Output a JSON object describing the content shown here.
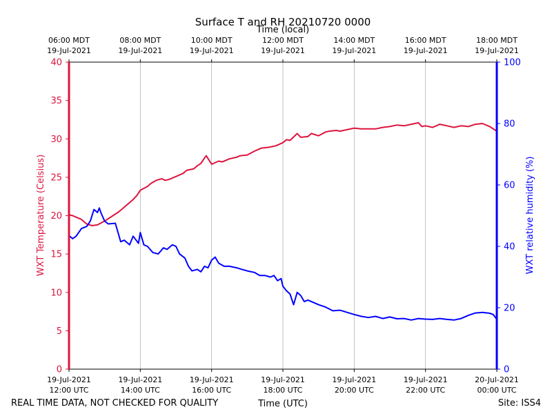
{
  "chart_data": {
    "type": "line",
    "title": "Surface T and RH 20210720 0000",
    "top_axis_label": "Time (local)",
    "top_ticks": [
      {
        "hour": 12,
        "line1": "06:00 MDT",
        "line2": "19-Jul-2021"
      },
      {
        "hour": 14,
        "line1": "08:00 MDT",
        "line2": "19-Jul-2021"
      },
      {
        "hour": 16,
        "line1": "10:00 MDT",
        "line2": "19-Jul-2021"
      },
      {
        "hour": 18,
        "line1": "12:00 MDT",
        "line2": "19-Jul-2021"
      },
      {
        "hour": 20,
        "line1": "14:00 MDT",
        "line2": "19-Jul-2021"
      },
      {
        "hour": 22,
        "line1": "16:00 MDT",
        "line2": "19-Jul-2021"
      },
      {
        "hour": 24,
        "line1": "18:00 MDT",
        "line2": "19-Jul-2021"
      }
    ],
    "xlabel": "Time (UTC)",
    "x_ticks": [
      {
        "hour": 12,
        "line1": "19-Jul-2021",
        "line2": "12:00 UTC"
      },
      {
        "hour": 14,
        "line1": "19-Jul-2021",
        "line2": "14:00 UTC"
      },
      {
        "hour": 16,
        "line1": "19-Jul-2021",
        "line2": "16:00 UTC"
      },
      {
        "hour": 18,
        "line1": "19-Jul-2021",
        "line2": "18:00 UTC"
      },
      {
        "hour": 20,
        "line1": "19-Jul-2021",
        "line2": "20:00 UTC"
      },
      {
        "hour": 22,
        "line1": "19-Jul-2021",
        "line2": "22:00 UTC"
      },
      {
        "hour": 24,
        "line1": "20-Jul-2021",
        "line2": "00:00 UTC"
      }
    ],
    "xlim": [
      12,
      24
    ],
    "grid_x": true,
    "ylabel_left": "WXT Temperature (Celsius)",
    "ylim_left": [
      0,
      40
    ],
    "yticks_left": [
      0,
      5,
      10,
      15,
      20,
      25,
      30,
      35,
      40
    ],
    "ylabel_right": "WXT relative humidity (%)",
    "ylim_right": [
      0,
      100
    ],
    "yticks_right": [
      0,
      20,
      40,
      60,
      80,
      100
    ],
    "series": [
      {
        "name": "Temperature",
        "axis": "left",
        "color": "#dc143c",
        "x": [
          12.0,
          12.1,
          12.2,
          12.35,
          12.5,
          12.65,
          12.8,
          13.0,
          13.2,
          13.4,
          13.6,
          13.8,
          13.9,
          14.0,
          14.2,
          14.3,
          14.45,
          14.6,
          14.7,
          14.8,
          15.0,
          15.2,
          15.3,
          15.5,
          15.6,
          15.7,
          15.8,
          15.85,
          16.0,
          16.2,
          16.3,
          16.5,
          16.7,
          16.8,
          17.0,
          17.2,
          17.3,
          17.4,
          17.6,
          17.8,
          18.0,
          18.1,
          18.2,
          18.4,
          18.5,
          18.7,
          18.8,
          19.0,
          19.2,
          19.3,
          19.5,
          19.6,
          19.8,
          20.0,
          20.2,
          20.4,
          20.6,
          20.8,
          21.0,
          21.2,
          21.4,
          21.6,
          21.8,
          21.9,
          22.0,
          22.2,
          22.4,
          22.6,
          22.8,
          23.0,
          23.2,
          23.4,
          23.6,
          23.8,
          24.0
        ],
        "y": [
          20.1,
          20.0,
          19.8,
          19.5,
          18.9,
          18.7,
          18.8,
          19.3,
          19.9,
          20.5,
          21.3,
          22.1,
          22.6,
          23.3,
          23.8,
          24.2,
          24.6,
          24.8,
          24.6,
          24.7,
          25.1,
          25.5,
          25.9,
          26.1,
          26.5,
          26.8,
          27.5,
          27.8,
          26.7,
          27.1,
          27.0,
          27.4,
          27.6,
          27.8,
          27.9,
          28.4,
          28.6,
          28.8,
          28.9,
          29.1,
          29.5,
          29.9,
          29.8,
          30.7,
          30.2,
          30.3,
          30.7,
          30.4,
          30.9,
          31.0,
          31.1,
          31.0,
          31.2,
          31.4,
          31.3,
          31.3,
          31.3,
          31.5,
          31.6,
          31.8,
          31.7,
          31.9,
          32.1,
          31.6,
          31.7,
          31.5,
          31.9,
          31.7,
          31.5,
          31.7,
          31.6,
          31.9,
          32.0,
          31.6,
          31.0
        ]
      },
      {
        "name": "Relative humidity",
        "axis": "right",
        "color": "#0000ff",
        "x": [
          12.0,
          12.1,
          12.2,
          12.35,
          12.5,
          12.6,
          12.7,
          12.8,
          12.85,
          12.9,
          13.0,
          13.1,
          13.3,
          13.45,
          13.55,
          13.7,
          13.8,
          13.95,
          14.0,
          14.1,
          14.2,
          14.35,
          14.5,
          14.65,
          14.75,
          14.9,
          15.0,
          15.1,
          15.25,
          15.35,
          15.45,
          15.6,
          15.7,
          15.8,
          15.9,
          16.0,
          16.1,
          16.2,
          16.35,
          16.5,
          16.7,
          16.85,
          17.0,
          17.2,
          17.35,
          17.5,
          17.65,
          17.75,
          17.85,
          17.95,
          18.0,
          18.1,
          18.2,
          18.3,
          18.4,
          18.5,
          18.6,
          18.7,
          18.8,
          19.0,
          19.2,
          19.4,
          19.6,
          19.8,
          20.0,
          20.2,
          20.4,
          20.6,
          20.8,
          21.0,
          21.2,
          21.4,
          21.6,
          21.8,
          22.0,
          22.2,
          22.4,
          22.6,
          22.8,
          23.0,
          23.2,
          23.4,
          23.6,
          23.8,
          23.9,
          24.0
        ],
        "y": [
          43.5,
          42.5,
          43.3,
          45.8,
          46.5,
          48.3,
          52.0,
          51.0,
          52.5,
          50.8,
          48.2,
          47.3,
          47.5,
          41.5,
          42.0,
          40.5,
          43.3,
          41.0,
          44.5,
          40.5,
          40.0,
          38.0,
          37.5,
          39.5,
          39.0,
          40.5,
          40.0,
          37.5,
          36.2,
          33.5,
          32.0,
          32.5,
          31.7,
          33.5,
          33.0,
          35.5,
          36.5,
          34.5,
          33.5,
          33.5,
          33.0,
          32.5,
          32.0,
          31.5,
          30.5,
          30.5,
          30.0,
          30.5,
          28.8,
          29.5,
          27.0,
          25.5,
          24.5,
          21.0,
          25.0,
          24.0,
          22.0,
          22.5,
          22.0,
          21.0,
          20.2,
          19.0,
          19.2,
          18.5,
          17.8,
          17.2,
          16.8,
          17.2,
          16.5,
          17.0,
          16.4,
          16.5,
          16.0,
          16.5,
          16.3,
          16.2,
          16.5,
          16.2,
          16.0,
          16.5,
          17.5,
          18.3,
          18.5,
          18.2,
          17.8,
          16.2
        ]
      }
    ],
    "footer_left": "REAL TIME DATA, NOT CHECKED FOR QUALITY",
    "footer_right": "Site: ISS4"
  }
}
